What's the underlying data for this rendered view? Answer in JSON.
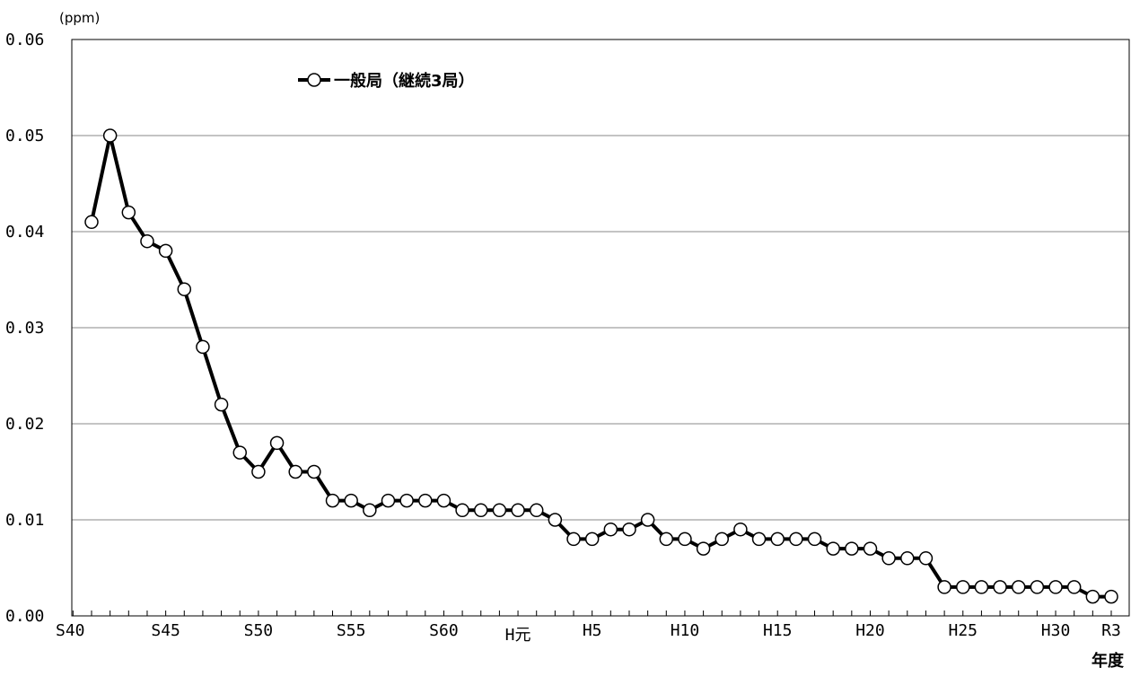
{
  "chart_data": {
    "type": "line",
    "ylabel_unit": "(ppm)",
    "xlabel": "年度",
    "ylim": [
      0,
      0.06
    ],
    "y_ticks": [
      "0.00",
      "0.01",
      "0.02",
      "0.03",
      "0.04",
      "0.05",
      "0.06"
    ],
    "y_tick_values": [
      0,
      0.01,
      0.02,
      0.03,
      0.04,
      0.05,
      0.06
    ],
    "x_tick_labels": [
      "S40",
      "S45",
      "S50",
      "S55",
      "S60",
      "H元",
      "H5",
      "H10",
      "H15",
      "H20",
      "H25",
      "H30",
      "R3"
    ],
    "x_tick_years": [
      "S40",
      "S45",
      "S50",
      "S55",
      "S60",
      "H元",
      "H5",
      "H10",
      "H15",
      "H20",
      "H25",
      "H30",
      "R3"
    ],
    "x_categories": [
      "S40",
      "S41",
      "S42",
      "S43",
      "S44",
      "S45",
      "S46",
      "S47",
      "S48",
      "S49",
      "S50",
      "S51",
      "S52",
      "S53",
      "S54",
      "S55",
      "S56",
      "S57",
      "S58",
      "S59",
      "S60",
      "S61",
      "S62",
      "S63",
      "H元",
      "H2",
      "H3",
      "H4",
      "H5",
      "H6",
      "H7",
      "H8",
      "H9",
      "H10",
      "H11",
      "H12",
      "H13",
      "H14",
      "H15",
      "H16",
      "H17",
      "H18",
      "H19",
      "H20",
      "H21",
      "H22",
      "H23",
      "H24",
      "H25",
      "H26",
      "H27",
      "H28",
      "H29",
      "H30",
      "R1",
      "R2",
      "R3"
    ],
    "grid": true,
    "legend_position": "top-left",
    "series": [
      {
        "name": "一般局（継続3局）",
        "color": "#000000",
        "x": [
          "S41",
          "S42",
          "S43",
          "S44",
          "S45",
          "S46",
          "S47",
          "S48",
          "S49",
          "S50",
          "S51",
          "S52",
          "S53",
          "S54",
          "S55",
          "S56",
          "S57",
          "S58",
          "S59",
          "S60",
          "S61",
          "S62",
          "S63",
          "H元",
          "H2",
          "H3",
          "H4",
          "H5",
          "H6",
          "H7",
          "H8",
          "H9",
          "H10",
          "H11",
          "H12",
          "H13",
          "H14",
          "H15",
          "H16",
          "H17",
          "H18",
          "H19",
          "H20",
          "H21",
          "H22",
          "H23",
          "H24",
          "H25",
          "H26",
          "H27",
          "H28",
          "H29",
          "H30",
          "R1",
          "R2",
          "R3"
        ],
        "values": [
          0.041,
          0.05,
          0.042,
          0.039,
          0.038,
          0.034,
          0.028,
          0.022,
          0.017,
          0.015,
          0.018,
          0.015,
          0.015,
          0.012,
          0.012,
          0.011,
          0.012,
          0.012,
          0.012,
          0.012,
          0.011,
          0.011,
          0.011,
          0.011,
          0.011,
          0.01,
          0.008,
          0.008,
          0.009,
          0.009,
          0.01,
          0.008,
          0.008,
          0.007,
          0.008,
          0.009,
          0.008,
          0.008,
          0.008,
          0.008,
          0.007,
          0.007,
          0.007,
          0.006,
          0.006,
          0.006,
          0.003,
          0.003,
          0.003,
          0.003,
          0.003,
          0.003,
          0.003,
          0.003,
          0.002,
          0.002
        ]
      }
    ]
  }
}
